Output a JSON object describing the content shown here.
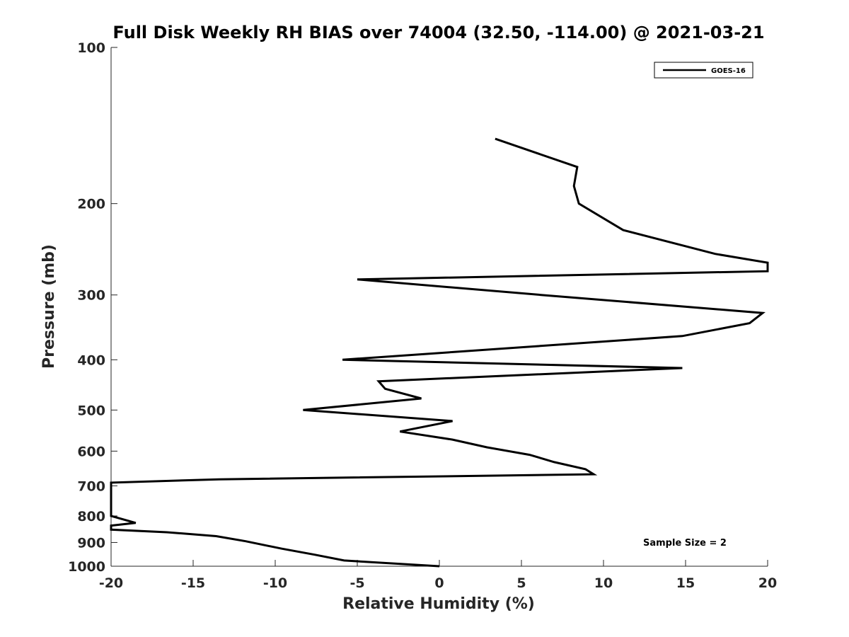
{
  "chart_data": {
    "type": "line",
    "title": "Full Disk Weekly RH BIAS over 74004 (32.50, -114.00) @ 2021-03-21",
    "xlabel": "Relative Humidity (%)",
    "ylabel": "Pressure (mb)",
    "xlim": [
      -20,
      20
    ],
    "ylim": [
      100,
      1000
    ],
    "yscale": "log",
    "y_reversed": true,
    "grid": false,
    "legend_position": "top-right",
    "x_ticks": [
      -20,
      -15,
      -10,
      -5,
      0,
      5,
      10,
      15,
      20
    ],
    "x_tick_labels": [
      "-20",
      "-15",
      "-10",
      "-5",
      "0",
      "5",
      "10",
      "15",
      "20"
    ],
    "y_ticks": [
      100,
      200,
      300,
      400,
      500,
      600,
      700,
      800,
      900,
      1000
    ],
    "y_tick_labels": [
      "100",
      "200",
      "300",
      "400",
      "500",
      "600",
      "700",
      "800",
      "900",
      "1000"
    ],
    "series": [
      {
        "name": "GOES-16",
        "color": "#000000",
        "points": [
          [
            3.4,
            150
          ],
          [
            8.4,
            170
          ],
          [
            8.2,
            185
          ],
          [
            8.5,
            200
          ],
          [
            11.2,
            225
          ],
          [
            16.8,
            250
          ],
          [
            20,
            260
          ],
          [
            20,
            270
          ],
          [
            -5.0,
            280
          ],
          [
            6.2,
            300
          ],
          [
            19.7,
            325
          ],
          [
            18.9,
            340
          ],
          [
            14.8,
            360
          ],
          [
            -5.9,
            400
          ],
          [
            14.8,
            415
          ],
          [
            -3.7,
            440
          ],
          [
            -3.3,
            455
          ],
          [
            -1.1,
            475
          ],
          [
            -8.3,
            500
          ],
          [
            0.8,
            525
          ],
          [
            -2.4,
            550
          ],
          [
            0.8,
            570
          ],
          [
            2.9,
            590
          ],
          [
            5.5,
            610
          ],
          [
            7.0,
            630
          ],
          [
            8.9,
            650
          ],
          [
            9.4,
            665
          ],
          [
            -13.4,
            680
          ],
          [
            -20,
            690
          ],
          [
            -20,
            800
          ],
          [
            -18.5,
            825
          ],
          [
            -20,
            835
          ],
          [
            -20,
            850
          ],
          [
            -16.6,
            860
          ],
          [
            -13.6,
            875
          ],
          [
            -11.8,
            895
          ],
          [
            -9.6,
            925
          ],
          [
            -7.6,
            950
          ],
          [
            -5.8,
            975
          ],
          [
            0,
            1000
          ]
        ]
      }
    ],
    "annotation": "Sample Size = 2"
  }
}
